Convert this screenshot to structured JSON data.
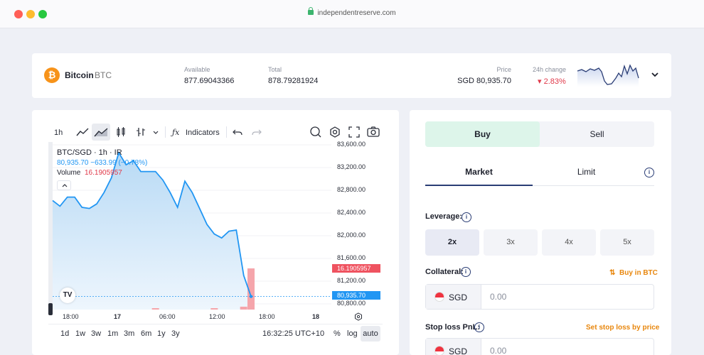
{
  "browser": {
    "url": "independentreserve.com"
  },
  "asset": {
    "name": "Bitcoin",
    "symbol": "BTC",
    "available_label": "Available",
    "available_value": "877.69043366",
    "total_label": "Total",
    "total_value": "878.79281924",
    "price_label": "Price",
    "price_value": "SGD 80,935.70",
    "change_label": "24h change",
    "change_value": "▾ 2.83%"
  },
  "toolbar": {
    "interval": "1h",
    "indicators": "Indicators"
  },
  "chart_legend": {
    "title": "BTC/SGD · 1h · IR",
    "ohlc": "80,935.70 −633.99 (−0.78%)",
    "volume_label": "Volume",
    "volume_value": "16.1905957"
  },
  "chart_data": {
    "type": "area",
    "title": "BTC/SGD · 1h · IR",
    "y_ticks": [
      "83,600.00",
      "83,200.00",
      "82,800.00",
      "82,400.00",
      "82,000.00",
      "81,600.00",
      "81,200.00",
      "80,800.00"
    ],
    "x_ticks": [
      "18:00",
      "17",
      "06:00",
      "12:00",
      "18:00",
      "18"
    ],
    "ylim": [
      80700,
      83650
    ],
    "price_series": [
      82620,
      82520,
      82680,
      82680,
      82500,
      82480,
      82560,
      82760,
      83020,
      83460,
      83250,
      83320,
      83130,
      83130,
      83130,
      82980,
      82760,
      82500,
      82960,
      82760,
      82480,
      82200,
      82030,
      81960,
      82080,
      82100,
      81300,
      80930
    ],
    "volume_series": [
      0,
      0,
      0,
      0,
      0,
      0,
      0,
      0,
      0,
      0,
      0,
      0,
      0,
      0,
      0.01,
      0,
      0,
      0,
      0,
      0,
      0,
      0,
      0.01,
      0,
      0,
      0,
      0.07,
      1
    ],
    "last_price": "80,935.70",
    "last_volume": "16.1905957",
    "grid": true
  },
  "chart_footer": {
    "ranges": [
      "1d",
      "1w",
      "3w",
      "1m",
      "3m",
      "6m",
      "1y",
      "3y"
    ],
    "time": "16:32:25 UTC+10",
    "percent": "%",
    "log": "log",
    "auto": "auto"
  },
  "order": {
    "buy": "Buy",
    "sell": "Sell",
    "market": "Market",
    "limit": "Limit",
    "leverage_label": "Leverage:",
    "leverage_options": [
      "2x",
      "3x",
      "4x",
      "5x"
    ],
    "collateral_label": "Collateral:",
    "buy_in_btc": "Buy in BTC",
    "currency": "SGD",
    "collateral_placeholder": "0.00",
    "stop_loss_label": "Stop loss PnL:",
    "set_stop_loss": "Set stop loss by price",
    "stop_loss_placeholder": "0.00"
  },
  "colors": {
    "accent": "#2962ff",
    "line": "#2196f3",
    "buy_bg": "#ddf5ea",
    "down": "#e0394a",
    "orange": "#e8860c"
  }
}
